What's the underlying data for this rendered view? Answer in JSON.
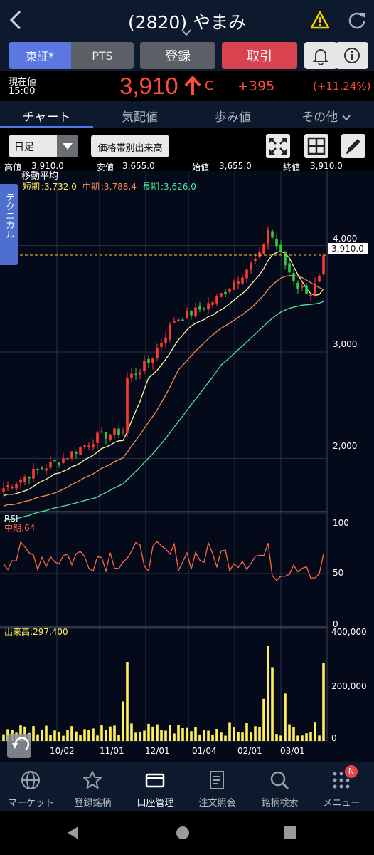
{
  "header": {
    "title": "(2820) やまみ"
  },
  "buttons": {
    "market_tse": "東証*",
    "market_pts": "PTS",
    "register": "登録",
    "trade": "取引"
  },
  "quote": {
    "current_label": "現在値",
    "time": "15:00",
    "price": "3,910",
    "price_flag": "C",
    "change": "+395",
    "change_pct": "(+11.24%)"
  },
  "tabs": [
    {
      "label": "チャート"
    },
    {
      "label": "気配値"
    },
    {
      "label": "歩み値"
    },
    {
      "label": "その他"
    }
  ],
  "toolbar": {
    "period": "日足",
    "volume_profile": "価格帯別出来高"
  },
  "ohlc": {
    "high_label": "高値",
    "high": "3,910.0",
    "low_label": "安値",
    "low": "3,655.0",
    "open_label": "始値",
    "open": "3,655.0",
    "close_label": "終値",
    "close": "3,910.0"
  },
  "side_tab": "テクニカル",
  "ma": {
    "title": "移動平均",
    "short_label": "短期",
    "short": "3,732.0",
    "mid_label": "中期",
    "mid": "3,788.4",
    "long_label": "長期",
    "long": "3,626.0"
  },
  "rsi": {
    "title": "RSI",
    "mid_label": "中期",
    "mid": "64",
    "ticks": [
      "100",
      "50",
      "0"
    ]
  },
  "volume": {
    "label": "出来高",
    "value": "297,400",
    "ticks": [
      "400,000",
      "200,000",
      "0"
    ]
  },
  "price_axis": {
    "ticks": [
      "4,000",
      "3,000",
      "2,000"
    ],
    "current_tag": "3,910.0"
  },
  "x_axis": {
    "labels": [
      "10/02",
      "11/01",
      "12/01",
      "01/04",
      "02/01",
      "03/01"
    ]
  },
  "colors": {
    "up": "#ff3b30",
    "down": "#2ecc40",
    "ma_short": "#fff8a0",
    "ma_mid": "#ff8a50",
    "ma_long": "#4ee6a0",
    "rsi": "#ff6a3d",
    "volume": "#ffee58",
    "accent": "#4f79e6"
  },
  "bottom_nav": [
    {
      "label": "マーケット",
      "icon": "globe-icon"
    },
    {
      "label": "登録銘柄",
      "icon": "star-icon"
    },
    {
      "label": "口座管理",
      "icon": "card-icon"
    },
    {
      "label": "注文照会",
      "icon": "document-icon"
    },
    {
      "label": "銘柄検索",
      "icon": "search-icon"
    },
    {
      "label": "メニュー",
      "icon": "grid-icon",
      "badge": "N"
    }
  ],
  "chart_data": [
    {
      "type": "candlestick",
      "title": "移動平均",
      "y_ticks": [
        2000,
        3000,
        4000
      ],
      "ylim": [
        1500,
        4700
      ],
      "last_close": 3910,
      "series": [
        {
          "name": "短期",
          "value": 3732.0
        },
        {
          "name": "中期",
          "value": 3788.4
        },
        {
          "name": "長期",
          "value": 3626.0
        }
      ],
      "x_labels": [
        "10/02",
        "11/01",
        "12/01",
        "01/04",
        "02/01",
        "03/01"
      ]
    },
    {
      "type": "line",
      "title": "RSI",
      "series": [
        {
          "name": "中期",
          "last": 64
        }
      ],
      "ylim": [
        0,
        100
      ],
      "y_ticks": [
        0,
        50,
        100
      ]
    },
    {
      "type": "bar",
      "title": "出来高",
      "last": 297400,
      "ylim": [
        0,
        400000
      ],
      "y_ticks": [
        0,
        200000,
        400000
      ]
    }
  ]
}
